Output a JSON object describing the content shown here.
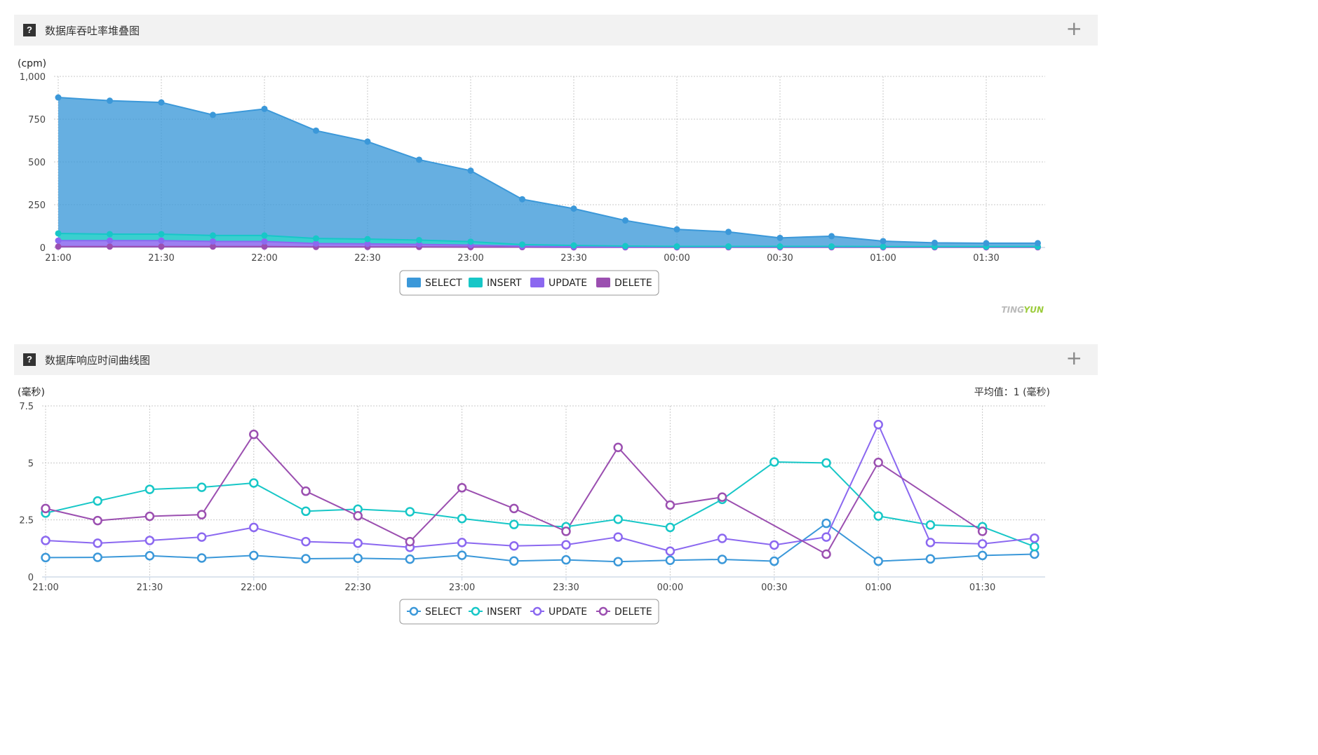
{
  "panels": [
    {
      "title": "数据库吞吐率堆叠图",
      "help_icon": "?",
      "plus_icon": "+",
      "unit": "(cpm)",
      "watermark_a": "TING",
      "watermark_b": "YUN"
    },
    {
      "title": "数据库响应时间曲线图",
      "help_icon": "?",
      "plus_icon": "+",
      "unit": "(毫秒)",
      "average_label": "平均值：",
      "average_value": "1",
      "average_unit": " (毫秒)"
    }
  ],
  "colors": {
    "SELECT": "#3b98d9",
    "INSERT": "#17c7c7",
    "UPDATE": "#8b68f0",
    "DELETE": "#9b4fb0"
  },
  "chart_data": [
    {
      "type": "area",
      "stacked": true,
      "title": "数据库吞吐率堆叠图",
      "ylabel": "(cpm)",
      "ylim": [
        0,
        1000
      ],
      "yticks": [
        "0",
        "250",
        "500",
        "750",
        "1,000"
      ],
      "ytick_values": [
        0,
        250,
        500,
        750,
        1000
      ],
      "xtick_labels": [
        "21:00",
        "21:30",
        "22:00",
        "22:30",
        "23:00",
        "23:30",
        "00:00",
        "00:30",
        "01:00",
        "01:30"
      ],
      "x": [
        "21:00",
        "21:15",
        "21:30",
        "21:45",
        "22:00",
        "22:15",
        "22:30",
        "22:45",
        "23:00",
        "23:15",
        "23:30",
        "23:45",
        "00:00",
        "00:15",
        "00:30",
        "00:45",
        "01:00",
        "01:15",
        "01:30",
        "01:45"
      ],
      "series": [
        {
          "name": "SELECT",
          "values": [
            795,
            780,
            770,
            705,
            740,
            630,
            570,
            470,
            415,
            265,
            215,
            150,
            100,
            85,
            50,
            60,
            32,
            22,
            20,
            20
          ]
        },
        {
          "name": "INSERT",
          "values": [
            42,
            38,
            38,
            35,
            35,
            30,
            28,
            25,
            20,
            10,
            8,
            5,
            3,
            3,
            3,
            3,
            2,
            2,
            2,
            2
          ]
        },
        {
          "name": "UPDATE",
          "values": [
            35,
            35,
            35,
            30,
            30,
            20,
            18,
            15,
            12,
            5,
            3,
            2,
            2,
            2,
            2,
            2,
            2,
            2,
            2,
            2
          ]
        },
        {
          "name": "DELETE",
          "values": [
            5,
            5,
            5,
            5,
            5,
            3,
            3,
            3,
            2,
            2,
            1,
            1,
            1,
            1,
            1,
            1,
            1,
            1,
            1,
            1
          ]
        }
      ],
      "grid": true,
      "legend": "bottom-center"
    },
    {
      "type": "line",
      "title": "数据库响应时间曲线图",
      "ylabel": "(毫秒)",
      "ylim": [
        0,
        7.5
      ],
      "yticks": [
        "0",
        "2.5",
        "5",
        "7.5"
      ],
      "ytick_values": [
        0,
        2.5,
        5,
        7.5
      ],
      "xtick_labels": [
        "21:00",
        "21:30",
        "22:00",
        "22:30",
        "23:00",
        "23:30",
        "00:00",
        "00:30",
        "01:00",
        "01:30"
      ],
      "x": [
        "21:00",
        "21:15",
        "21:30",
        "21:45",
        "22:00",
        "22:15",
        "22:30",
        "22:45",
        "23:00",
        "23:15",
        "23:30",
        "23:45",
        "00:00",
        "00:15",
        "00:30",
        "00:45",
        "01:00",
        "01:15",
        "01:30",
        "01:45"
      ],
      "series": [
        {
          "name": "SELECT",
          "values": [
            0.85,
            0.86,
            0.93,
            0.83,
            0.94,
            0.8,
            0.82,
            0.78,
            0.95,
            0.7,
            0.75,
            0.67,
            0.73,
            0.77,
            0.69,
            2.35,
            0.69,
            0.79,
            0.94,
            1.0
          ]
        },
        {
          "name": "INSERT",
          "values": [
            2.8,
            3.33,
            3.84,
            3.93,
            4.12,
            2.88,
            2.97,
            2.86,
            2.56,
            2.3,
            2.2,
            2.53,
            2.17,
            3.4,
            5.04,
            5.0,
            2.67,
            2.28,
            2.2,
            1.33
          ]
        },
        {
          "name": "UPDATE",
          "values": [
            1.6,
            1.48,
            1.6,
            1.75,
            2.17,
            1.55,
            1.48,
            1.3,
            1.51,
            1.36,
            1.41,
            1.75,
            1.13,
            1.69,
            1.4,
            1.75,
            6.68,
            1.51,
            1.45,
            1.7
          ]
        },
        {
          "name": "DELETE",
          "values": [
            3.0,
            2.47,
            2.66,
            2.73,
            6.25,
            3.76,
            2.68,
            1.55,
            3.91,
            3.0,
            2.0,
            5.68,
            3.15,
            3.5,
            null,
            1.0,
            5.02,
            null,
            2.0,
            null
          ]
        }
      ],
      "grid": true,
      "legend": "bottom-center"
    }
  ]
}
